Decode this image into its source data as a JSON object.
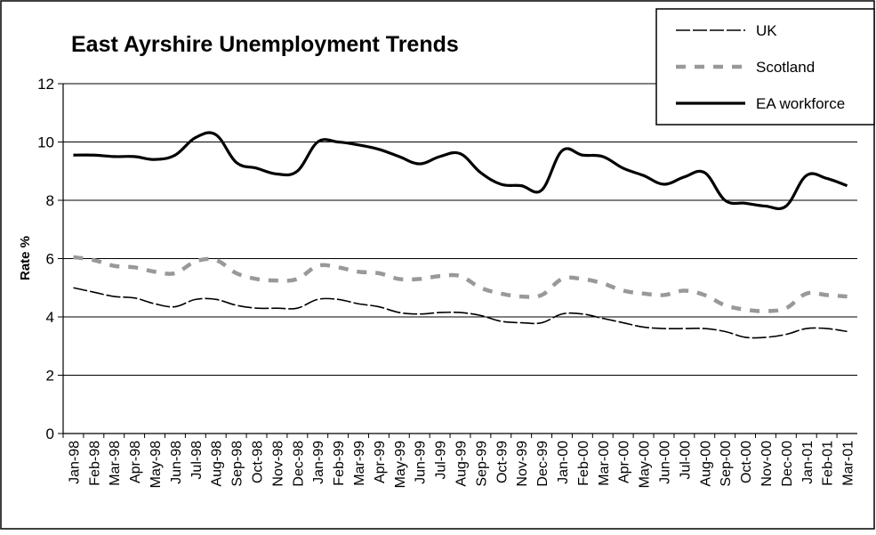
{
  "chart_data": {
    "type": "line",
    "title": "East Ayrshire Unemployment Trends",
    "xlabel": "",
    "ylabel": "Rate %",
    "ylim": [
      0,
      12
    ],
    "yticks": [
      0,
      2,
      4,
      6,
      8,
      10,
      12
    ],
    "grid": "horizontal",
    "legend_position": "top-right",
    "categories": [
      "Jan-98",
      "Feb-98",
      "Mar-98",
      "Apr-98",
      "May-98",
      "Jun-98",
      "Jul-98",
      "Aug-98",
      "Sep-98",
      "Oct-98",
      "Nov-98",
      "Dec-98",
      "Jan-99",
      "Feb-99",
      "Mar-99",
      "Apr-99",
      "May-99",
      "Jun-99",
      "Jul-99",
      "Aug-99",
      "Sep-99",
      "Oct-99",
      "Nov-99",
      "Dec-99",
      "Jan-00",
      "Feb-00",
      "Mar-00",
      "Apr-00",
      "May-00",
      "Jun-00",
      "Jul-00",
      "Aug-00",
      "Sep-00",
      "Oct-00",
      "Nov-00",
      "Dec-00",
      "Jan-01",
      "Feb-01",
      "Mar-01"
    ],
    "series": [
      {
        "name": "UK",
        "style": "dashed-thin",
        "color": "#000000",
        "values": [
          5.0,
          4.85,
          4.7,
          4.65,
          4.45,
          4.35,
          4.6,
          4.6,
          4.4,
          4.3,
          4.3,
          4.3,
          4.6,
          4.6,
          4.45,
          4.35,
          4.15,
          4.1,
          4.15,
          4.15,
          4.05,
          3.85,
          3.8,
          3.8,
          4.1,
          4.1,
          3.95,
          3.8,
          3.65,
          3.6,
          3.6,
          3.6,
          3.5,
          3.3,
          3.3,
          3.4,
          3.6,
          3.6,
          3.5
        ]
      },
      {
        "name": "Scotland",
        "style": "dashed-thick",
        "color": "#999999",
        "values": [
          6.05,
          5.95,
          5.75,
          5.7,
          5.55,
          5.5,
          5.9,
          5.95,
          5.5,
          5.3,
          5.25,
          5.3,
          5.75,
          5.7,
          5.55,
          5.5,
          5.3,
          5.3,
          5.4,
          5.4,
          5.0,
          4.8,
          4.7,
          4.75,
          5.3,
          5.3,
          5.15,
          4.9,
          4.8,
          4.75,
          4.9,
          4.75,
          4.4,
          4.25,
          4.2,
          4.3,
          4.8,
          4.75,
          4.7
        ]
      },
      {
        "name": "EA workforce",
        "style": "solid-thick",
        "color": "#000000",
        "values": [
          9.55,
          9.55,
          9.5,
          9.5,
          9.4,
          9.55,
          10.15,
          10.25,
          9.3,
          9.1,
          8.9,
          9.0,
          10.0,
          10.0,
          9.9,
          9.75,
          9.5,
          9.25,
          9.5,
          9.6,
          8.95,
          8.55,
          8.5,
          8.35,
          9.7,
          9.55,
          9.5,
          9.1,
          8.85,
          8.55,
          8.8,
          8.95,
          8.0,
          7.9,
          7.8,
          7.8,
          8.85,
          8.75,
          8.5
        ]
      }
    ]
  }
}
